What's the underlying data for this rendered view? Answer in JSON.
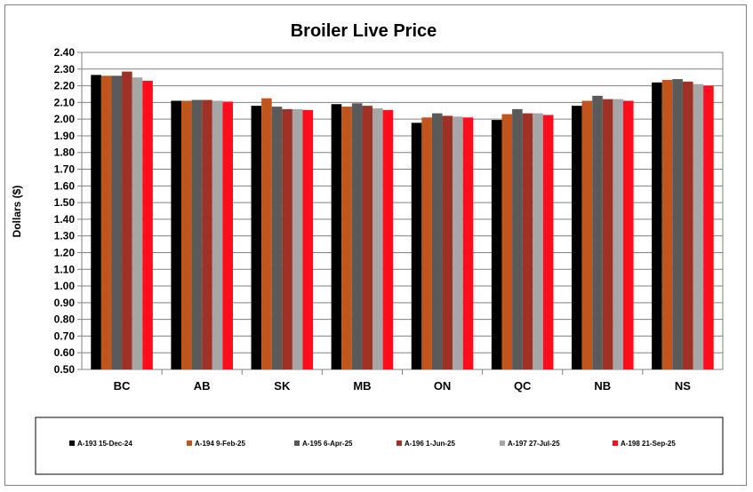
{
  "chart_data": {
    "type": "bar",
    "title": "Broiler Live Price",
    "xlabel": "",
    "ylabel": "Dollars ($)",
    "ylim": [
      0.5,
      2.4
    ],
    "ytick_step": 0.1,
    "grid": true,
    "legend_position": "bottom",
    "categories": [
      "BC",
      "AB",
      "SK",
      "MB",
      "ON",
      "QC",
      "NB",
      "NS"
    ],
    "series": [
      {
        "name": "A-193 15-Dec-24",
        "color": "#000000",
        "values": [
          2.265,
          2.11,
          2.08,
          2.09,
          1.978,
          1.995,
          2.08,
          2.22
        ]
      },
      {
        "name": "A-194 9-Feb-25",
        "color": "#c0561e",
        "values": [
          2.26,
          2.11,
          2.125,
          2.075,
          2.01,
          2.03,
          2.11,
          2.235
        ]
      },
      {
        "name": "A-195 6-Apr-25",
        "color": "#5a5a5a",
        "values": [
          2.26,
          2.115,
          2.075,
          2.095,
          2.035,
          2.06,
          2.14,
          2.24
        ]
      },
      {
        "name": "A-196 1-Jun-25",
        "color": "#9e3226",
        "values": [
          2.285,
          2.115,
          2.06,
          2.08,
          2.02,
          2.035,
          2.12,
          2.225
        ]
      },
      {
        "name": "A-197 27-Jul-25",
        "color": "#a6a6a6",
        "values": [
          2.25,
          2.11,
          2.06,
          2.065,
          2.015,
          2.035,
          2.12,
          2.21
        ]
      },
      {
        "name": "A-198 21-Sep-25",
        "color": "#ff0d1d",
        "values": [
          2.23,
          2.105,
          2.055,
          2.055,
          2.01,
          2.025,
          2.11,
          2.2
        ]
      }
    ]
  }
}
